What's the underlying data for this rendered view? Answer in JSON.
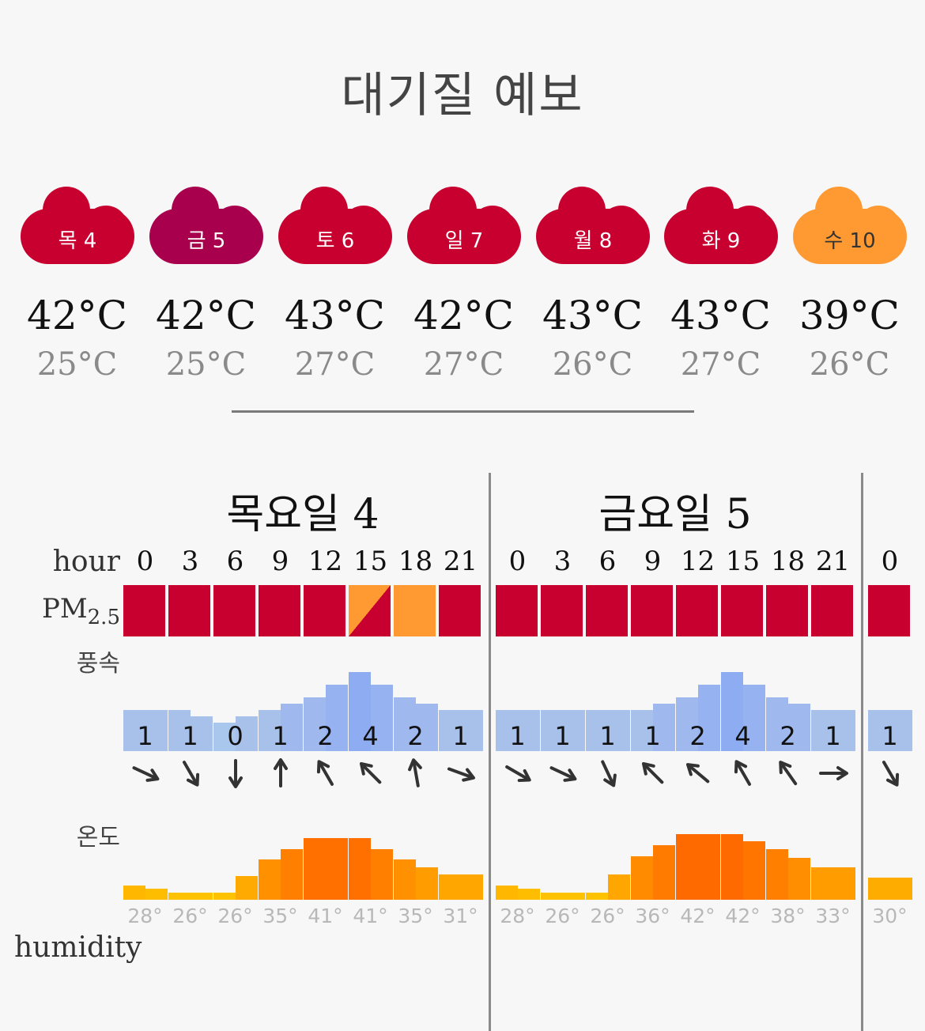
{
  "title": "대기질 예보",
  "days": [
    {
      "label": "목 4",
      "max": "42°C",
      "min": "25°C",
      "color": "#c8002f",
      "text_color": "#ffffff"
    },
    {
      "label": "금 5",
      "max": "42°C",
      "min": "25°C",
      "color": "#a8004c",
      "text_color": "#ffffff"
    },
    {
      "label": "토 6",
      "max": "43°C",
      "min": "27°C",
      "color": "#c8002f",
      "text_color": "#ffffff"
    },
    {
      "label": "일 7",
      "max": "42°C",
      "min": "27°C",
      "color": "#c8002f",
      "text_color": "#ffffff"
    },
    {
      "label": "월 8",
      "max": "43°C",
      "min": "26°C",
      "color": "#c8002f",
      "text_color": "#ffffff"
    },
    {
      "label": "화 9",
      "max": "43°C",
      "min": "27°C",
      "color": "#c8002f",
      "text_color": "#ffffff"
    },
    {
      "label": "수 10",
      "max": "39°C",
      "min": "26°C",
      "color": "#ff9a33",
      "text_color": "#333333"
    }
  ],
  "row_labels": {
    "hour": "hour",
    "pm": "PM",
    "pm_sub": "2.5",
    "wind": "풍속",
    "temp": "온도",
    "humidity": "humidity"
  },
  "detail_days": [
    {
      "heading": "목요일 4",
      "hours": [
        "0",
        "3",
        "6",
        "9",
        "12",
        "15",
        "18",
        "21"
      ],
      "pm_levels": [
        "red",
        "red",
        "red",
        "red",
        "red",
        "orange-red",
        "orange",
        "red"
      ],
      "wind": [
        "1",
        "1",
        "0",
        "1",
        "2",
        "4",
        "2",
        "1"
      ],
      "wind_dir_deg": [
        115,
        150,
        180,
        0,
        330,
        315,
        350,
        110
      ],
      "temps": [
        "28°",
        "26°",
        "26°",
        "35°",
        "41°",
        "41°",
        "35°",
        "31°"
      ]
    },
    {
      "heading": "금요일 5",
      "hours": [
        "0",
        "3",
        "6",
        "9",
        "12",
        "15",
        "18",
        "21"
      ],
      "pm_levels": [
        "red",
        "red",
        "red",
        "red",
        "red",
        "red",
        "red",
        "red"
      ],
      "wind": [
        "1",
        "1",
        "1",
        "1",
        "2",
        "4",
        "2",
        "1"
      ],
      "wind_dir_deg": [
        120,
        115,
        155,
        315,
        310,
        330,
        325,
        90
      ],
      "temps": [
        "28°",
        "26°",
        "26°",
        "36°",
        "42°",
        "42°",
        "38°",
        "33°"
      ]
    },
    {
      "heading": "",
      "hours": [
        "0"
      ],
      "pm_levels": [
        "red"
      ],
      "wind": [
        "1"
      ],
      "wind_dir_deg": [
        150
      ],
      "temps": [
        "30°"
      ]
    }
  ],
  "colors": {
    "pm_red": "#c8002f",
    "pm_orange": "#ff9a33",
    "wind": "#a9c6ec",
    "temp_low": "#ffc800",
    "temp_high": "#ff6a00"
  }
}
